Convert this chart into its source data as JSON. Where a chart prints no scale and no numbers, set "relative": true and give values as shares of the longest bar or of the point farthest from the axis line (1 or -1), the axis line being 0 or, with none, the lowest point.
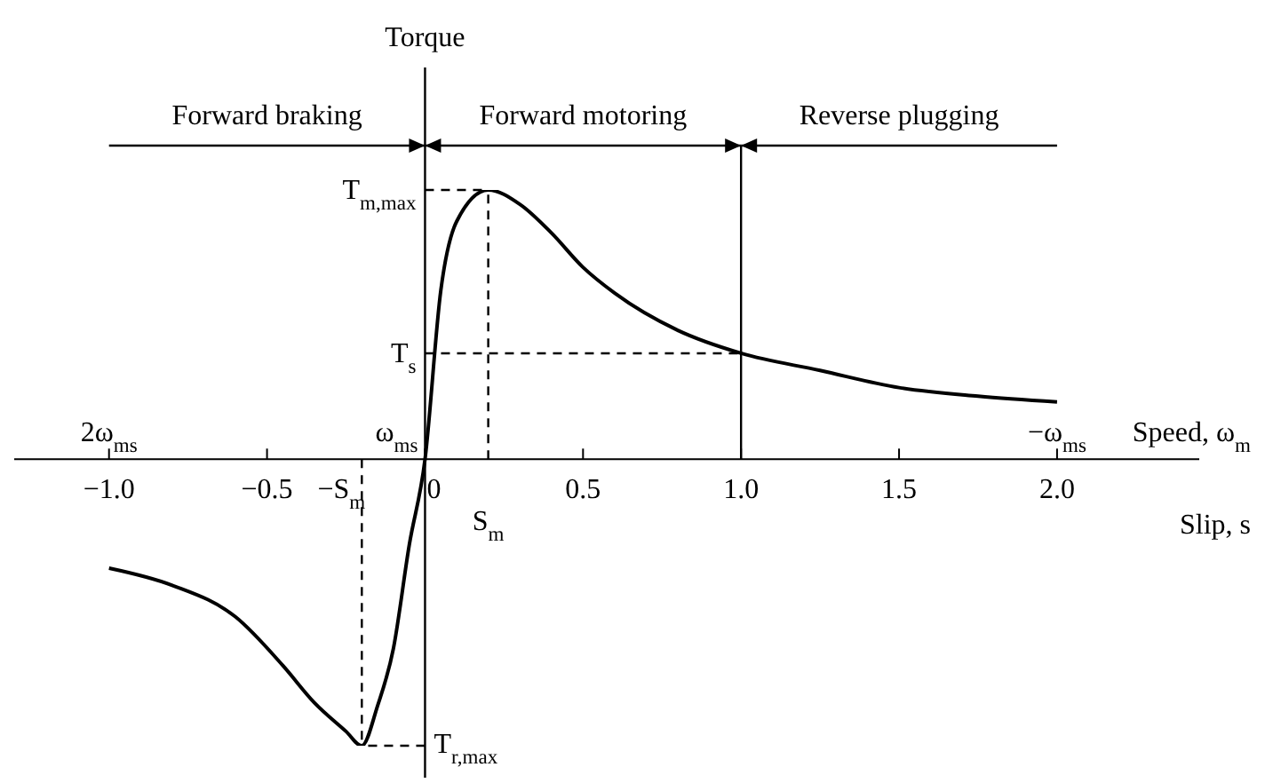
{
  "chart_data": {
    "type": "line",
    "relative": true,
    "ylabel": "Torque",
    "xlabel": "Slip, s",
    "annotations": [
      "Forward braking",
      "Forward motoring",
      "Reverse plugging",
      "2ω$_{ms}$",
      "ω$_{ms}$",
      "−ω$_{ms}$",
      "Speed, ω$_{m}$"
    ],
    "x": [
      -1.0,
      -0.8,
      -0.6,
      -0.45,
      -0.35,
      -0.25,
      -0.2,
      -0.15,
      -0.1,
      -0.05,
      0,
      0.05,
      0.1,
      0.2,
      0.3,
      0.4,
      0.5,
      0.6,
      0.8,
      1.0,
      1.25,
      1.5,
      1.75,
      2.0
    ],
    "series": [
      {
        "color": "#000000",
        "values": [
          -0.38,
          -0.44,
          -0.55,
          -0.72,
          -0.85,
          -0.95,
          -1,
          -0.86,
          -0.66,
          -0.3,
          0,
          0.59,
          0.83,
          0.94,
          0.89,
          0.79,
          0.67,
          0.58,
          0.45,
          0.37,
          0.31,
          0.25,
          0.22,
          0.2
        ]
      }
    ],
    "xlim": [
      -1.3,
      2.45
    ],
    "xticks": [
      {
        "value": -1,
        "label": "−1.0"
      },
      {
        "value": -0.5,
        "label": "−0.5"
      },
      0,
      0.5,
      {
        "value": 1,
        "label": "1.0"
      },
      1.5,
      {
        "value": 2,
        "label": "2.0"
      }
    ],
    "ref_lines": [
      {
        "axis": "y",
        "value": 0.94,
        "label": "T$_{m,max}$",
        "line_style": "dashed"
      },
      {
        "axis": "y",
        "value": 0.37,
        "label": "T$_{s}$",
        "line_style": "dashed"
      },
      {
        "axis": "y",
        "value": -1,
        "label": "T$_{r,max}$",
        "line_style": "dashed"
      },
      {
        "axis": "x",
        "value": 0.2,
        "label": "S$_{m}$",
        "line_style": "dashed"
      },
      {
        "axis": "x",
        "value": -0.2,
        "label": "−S$_{m}$",
        "line_style": "dashed"
      },
      {
        "axis": "x",
        "value": 1,
        "line_style": "solid"
      }
    ],
    "marker": "none",
    "line_style": "solid"
  }
}
